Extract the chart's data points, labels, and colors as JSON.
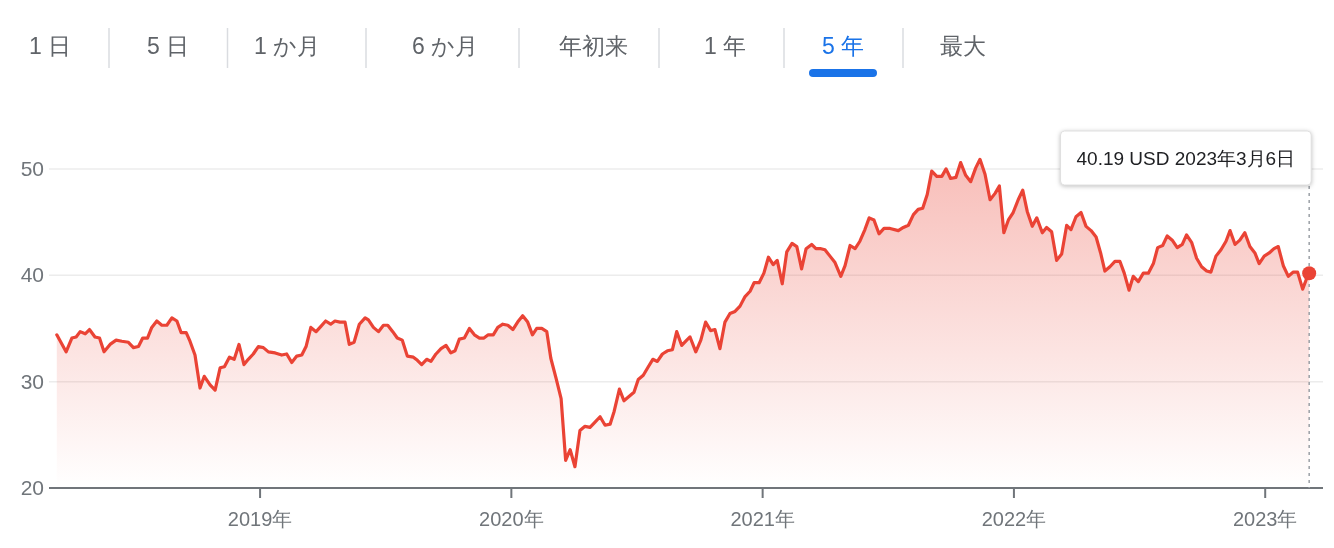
{
  "chart_data": {
    "type": "area",
    "color": "#ea4335",
    "x": [
      2018.191,
      2018.228,
      2018.251,
      2018.268,
      2018.284,
      2018.304,
      2018.321,
      2018.343,
      2018.361,
      2018.379,
      2018.403,
      2018.427,
      2018.45,
      2018.476,
      2018.496,
      2018.516,
      2018.533,
      2018.552,
      2018.569,
      2018.589,
      2018.609,
      2018.629,
      2018.649,
      2018.669,
      2018.686,
      2018.706,
      2018.721,
      2018.741,
      2018.761,
      2018.778,
      2018.801,
      2018.821,
      2018.841,
      2018.858,
      2018.878,
      2018.897,
      2018.916,
      2018.936,
      2018.953,
      2018.973,
      2018.993,
      2019.013,
      2019.033,
      2019.06,
      2019.086,
      2019.106,
      2019.126,
      2019.146,
      2019.166,
      2019.183,
      2019.202,
      2019.223,
      2019.242,
      2019.261,
      2019.281,
      2019.298,
      2019.318,
      2019.338,
      2019.355,
      2019.374,
      2019.395,
      2019.418,
      2019.431,
      2019.451,
      2019.471,
      2019.491,
      2019.508,
      2019.528,
      2019.546,
      2019.566,
      2019.586,
      2019.61,
      2019.626,
      2019.643,
      2019.663,
      2019.68,
      2019.7,
      2019.72,
      2019.74,
      2019.759,
      2019.776,
      2019.793,
      2019.813,
      2019.833,
      2019.853,
      2019.873,
      2019.891,
      2019.908,
      2019.928,
      2019.946,
      2019.966,
      2019.986,
      2020.006,
      2020.025,
      2020.045,
      2020.065,
      2020.084,
      2020.101,
      2020.121,
      2020.141,
      2020.157,
      2020.178,
      2020.198,
      2020.216,
      2020.234,
      2020.253,
      2020.273,
      2020.293,
      2020.313,
      2020.333,
      2020.353,
      2020.373,
      2020.393,
      2020.409,
      2020.43,
      2020.448,
      2020.468,
      2020.488,
      2020.505,
      2020.525,
      2020.545,
      2020.563,
      2020.581,
      2020.601,
      2020.621,
      2020.641,
      2020.658,
      2020.678,
      2020.698,
      2020.711,
      2020.734,
      2020.754,
      2020.773,
      2020.793,
      2020.81,
      2020.83,
      2020.85,
      2020.87,
      2020.89,
      2020.91,
      2020.93,
      2020.95,
      2020.966,
      2020.986,
      2021.005,
      2021.023,
      2021.042,
      2021.058,
      2021.078,
      2021.096,
      2021.117,
      2021.136,
      2021.155,
      2021.173,
      2021.195,
      2021.212,
      2021.232,
      2021.248,
      2021.268,
      2021.288,
      2021.311,
      2021.328,
      2021.348,
      2021.368,
      2021.387,
      2021.407,
      2021.424,
      2021.443,
      2021.463,
      2021.483,
      2021.507,
      2021.54,
      2021.56,
      2021.58,
      2021.6,
      2021.619,
      2021.637,
      2021.655,
      2021.673,
      2021.693,
      2021.713,
      2021.73,
      2021.748,
      2021.769,
      2021.788,
      2021.808,
      2021.828,
      2021.848,
      2021.865,
      2021.885,
      2021.905,
      2021.925,
      2021.942,
      2021.96,
      2021.978,
      2021.997,
      2022.017,
      2022.035,
      2022.053,
      2022.073,
      2022.091,
      2022.113,
      2022.13,
      2022.15,
      2022.17,
      2022.19,
      2022.21,
      2022.227,
      2022.247,
      2022.267,
      2022.287,
      2022.307,
      2022.327,
      2022.345,
      2022.362,
      2022.382,
      2022.402,
      2022.422,
      2022.439,
      2022.458,
      2022.475,
      2022.495,
      2022.515,
      2022.535,
      2022.555,
      2022.572,
      2022.592,
      2022.61,
      2022.63,
      2022.65,
      2022.67,
      2022.687,
      2022.707,
      2022.727,
      2022.747,
      2022.767,
      2022.784,
      2022.804,
      2022.824,
      2022.844,
      2022.86,
      2022.88,
      2022.899,
      2022.919,
      2022.939,
      2022.959,
      2022.976,
      2022.996,
      2023.016,
      2023.035,
      2023.052,
      2023.072,
      2023.092,
      2023.112,
      2023.129,
      2023.149,
      2023.165,
      2023.175
    ],
    "values": [
      34.4,
      32.8,
      34.1,
      34.2,
      34.7,
      34.5,
      34.9,
      34.2,
      34.1,
      32.8,
      33.5,
      33.9,
      33.8,
      33.7,
      33.2,
      33.3,
      34.1,
      34.1,
      35.1,
      35.7,
      35.3,
      35.3,
      36.0,
      35.7,
      34.6,
      34.6,
      33.8,
      32.5,
      29.4,
      30.5,
      29.7,
      29.2,
      31.3,
      31.4,
      32.3,
      32.1,
      33.5,
      31.6,
      32.1,
      32.6,
      33.3,
      33.2,
      32.8,
      32.7,
      32.5,
      32.6,
      31.8,
      32.4,
      32.5,
      33.3,
      35.1,
      34.7,
      35.2,
      35.7,
      35.4,
      35.7,
      35.6,
      35.6,
      33.5,
      33.7,
      35.4,
      36.0,
      35.8,
      35.1,
      34.7,
      35.3,
      35.3,
      34.7,
      34.1,
      33.9,
      32.4,
      32.3,
      32.0,
      31.6,
      32.1,
      31.9,
      32.6,
      33.1,
      33.4,
      32.7,
      32.9,
      34.0,
      34.1,
      35.0,
      34.4,
      34.1,
      34.1,
      34.4,
      34.4,
      35.1,
      35.4,
      35.3,
      34.9,
      35.6,
      36.2,
      35.6,
      34.4,
      35.0,
      35.0,
      34.7,
      32.2,
      30.3,
      28.4,
      22.6,
      23.6,
      22.0,
      25.4,
      25.8,
      25.7,
      26.2,
      26.7,
      25.9,
      26.0,
      27.2,
      29.3,
      28.2,
      28.6,
      29.0,
      30.2,
      30.6,
      31.4,
      32.1,
      31.9,
      32.6,
      32.9,
      33.0,
      34.7,
      33.4,
      33.9,
      34.2,
      32.8,
      33.9,
      35.6,
      34.8,
      34.9,
      33.1,
      35.6,
      36.4,
      36.6,
      37.1,
      38.0,
      38.5,
      39.3,
      39.3,
      40.2,
      41.7,
      41.0,
      41.4,
      39.2,
      42.2,
      43.0,
      42.7,
      40.6,
      42.5,
      42.9,
      42.5,
      42.5,
      42.4,
      41.8,
      41.2,
      39.9,
      40.9,
      42.8,
      42.5,
      43.2,
      44.3,
      45.4,
      45.2,
      43.9,
      44.4,
      44.4,
      44.2,
      44.5,
      44.7,
      45.7,
      46.2,
      46.3,
      47.6,
      49.8,
      49.3,
      49.3,
      50.0,
      49.1,
      49.2,
      50.6,
      49.4,
      48.8,
      50.1,
      50.9,
      49.5,
      47.1,
      47.7,
      48.4,
      44.0,
      45.2,
      45.9,
      47.1,
      48.0,
      46.0,
      44.6,
      45.4,
      44.0,
      44.5,
      44.1,
      41.4,
      42.0,
      44.7,
      44.3,
      45.5,
      45.9,
      44.6,
      44.2,
      43.6,
      42.1,
      40.4,
      40.8,
      41.3,
      41.3,
      40.2,
      38.6,
      39.9,
      39.4,
      40.2,
      40.2,
      41.1,
      42.6,
      42.8,
      43.7,
      43.3,
      42.6,
      42.9,
      43.8,
      43.1,
      41.6,
      40.8,
      40.4,
      40.3,
      41.8,
      42.4,
      43.2,
      44.2,
      42.9,
      43.3,
      44.0,
      42.7,
      42.1,
      41.1,
      41.8,
      42.1,
      42.5,
      42.7,
      40.9,
      39.9,
      40.3,
      40.3,
      38.7,
      39.7,
      40.19
    ],
    "xlim": [
      2018.16,
      2023.23
    ],
    "ylim": [
      20,
      53
    ],
    "ref_lines": [
      {
        "axis": "x",
        "value": 2023.175,
        "line_style": "dotted",
        "color": "#9aa0a6"
      }
    ],
    "xticks": [
      {
        "value": 2019,
        "label": "2019年"
      },
      {
        "value": 2020,
        "label": "2020年"
      },
      {
        "value": 2021,
        "label": "2021年"
      },
      {
        "value": 2022,
        "label": "2022年"
      },
      {
        "value": 2023,
        "label": "2023年"
      }
    ],
    "yticks": [
      20,
      30,
      40,
      50
    ],
    "grid": "y",
    "annotations": [
      "1 日",
      "5 日",
      "1 か月",
      "6 か月",
      "年初来",
      "1 年",
      "5 年",
      "最大",
      "40.19 USD  2023年3月6日"
    ]
  }
}
